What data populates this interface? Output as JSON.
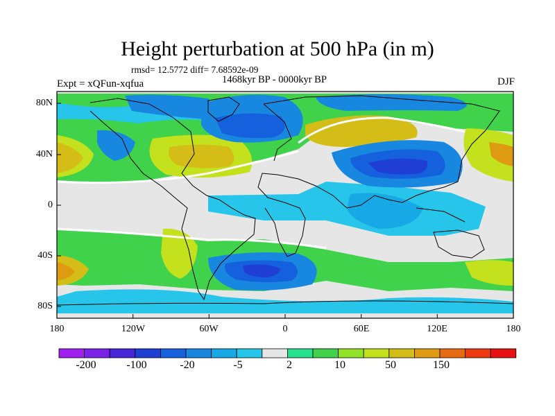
{
  "map": {
    "title": "Height perturbation at 500 hPa (in m)",
    "stats": "rmsd= 12.5772 diff= 7.68592e-09",
    "period": "1468kyr BP - 0000kyr BP",
    "experiment": "Expt = xQFun-xqfua",
    "season": "DJF",
    "lat_ticks": [
      "80N",
      "40N",
      "0",
      "40S",
      "80S"
    ],
    "lon_ticks": [
      "180",
      "120W",
      "60W",
      "0",
      "60E",
      "120E",
      "180"
    ],
    "colorbar": {
      "labels": [
        "-200",
        "-100",
        "-20",
        "-5",
        "2",
        "10",
        "50",
        "150"
      ],
      "colors": [
        "#a020f0",
        "#7a22e8",
        "#4626d8",
        "#1f3fd4",
        "#1560dc",
        "#1887e0",
        "#16a9e6",
        "#28c5ea",
        "#e6e6e6",
        "#26e08e",
        "#3fd24a",
        "#92e22a",
        "#c4e11e",
        "#d4bd16",
        "#de9a10",
        "#e86a10",
        "#ee3a10",
        "#e81212"
      ]
    }
  }
}
